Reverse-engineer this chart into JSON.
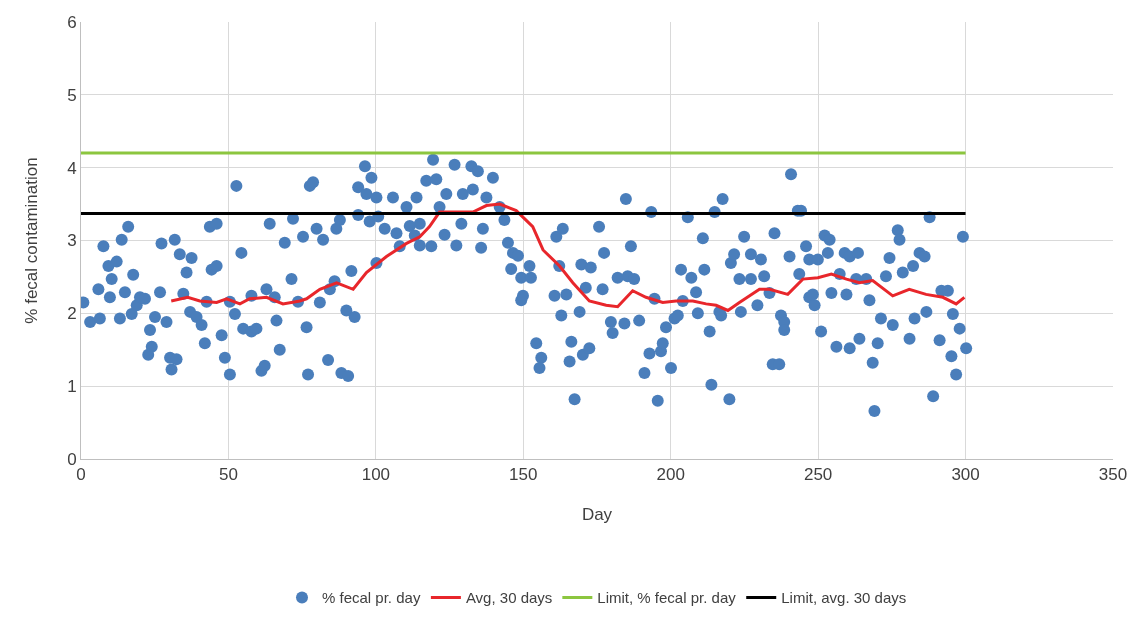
{
  "chart_data": {
    "type": "scatter",
    "xlabel": "Day",
    "ylabel": "% fecal contamination",
    "xlim": [
      0,
      350
    ],
    "xticks": [
      0,
      50,
      100,
      150,
      200,
      250,
      300,
      350
    ],
    "ylim": [
      0,
      6
    ],
    "yticks": [
      0,
      1,
      2,
      3,
      4,
      5,
      6
    ],
    "grid": true,
    "legend": "bottom",
    "series": [
      {
        "name": "% fecal pr. day",
        "marker": "circle",
        "color": "#4a7ebb",
        "x": [
          0.8,
          3.1,
          5.9,
          6.4,
          7.6,
          9.3,
          10.4,
          9.8,
          12.1,
          13.2,
          13.8,
          14.9,
          16.0,
          17.7,
          17.2,
          18.9,
          20.0,
          21.7,
          23.4,
          24.0,
          22.8,
          25.1,
          26.8,
          27.3,
          29.0,
          30.2,
          30.7,
          32.4,
          31.8,
          33.5,
          35.8,
          37.5,
          34.7,
          37.0,
          39.2,
          40.9,
          42.0,
          42.6,
          44.3,
          46.0,
          43.7,
          46.0,
          47.7,
          48.8,
          50.5,
          50.5,
          52.7,
          54.4,
          52.2,
          55.0,
          57.8,
          59.5,
          57.8,
          61.2,
          62.3,
          62.9,
          64.0,
          65.7,
          66.3,
          67.4,
          69.1,
          71.4,
          71.9,
          73.6,
          75.3,
          76.5,
          77.0,
          77.6,
          78.7,
          79.9,
          82.1,
          81.0,
          83.8,
          84.4,
          86.0,
          86.6,
          87.8,
          88.3,
          90.6,
          90.0,
          92.8,
          91.7,
          94.0,
          96.3,
          98.5,
          96.8,
          100.2,
          94.0,
          97.9,
          100.8,
          100.2,
          103.0,
          105.8,
          107.0,
          108.1,
          110.4,
          113.8,
          111.5,
          113.2,
          114.9,
          114.9,
          117.1,
          119.4,
          120.5,
          118.8,
          121.6,
          123.9,
          123.3,
          126.7,
          127.3,
          129.0,
          129.5,
          132.4,
          134.6,
          132.9,
          136.3,
          135.7,
          137.5,
          139.7,
          142.0,
          143.6,
          144.8,
          146.5,
          145.9,
          148.2,
          149.3,
          152.1,
          152.6,
          149.9,
          149.3,
          154.4,
          156.1,
          155.5,
          162.2,
          160.6,
          161.2,
          163.4,
          164.6,
          162.9,
          166.3,
          165.7,
          167.4,
          169.1,
          170.2,
          172.4,
          169.7,
          172.9,
          171.2,
          175.7,
          177.4,
          176.9,
          179.7,
          180.3,
          182.0,
          184.8,
          184.3,
          185.4,
          186.5,
          187.6,
          189.3,
          191.1,
          192.8,
          193.4,
          194.5,
          195.6,
          196.7,
          197.3,
          198.4,
          200.1,
          201.3,
          202.4,
          203.5,
          204.1,
          205.8,
          207.0,
          208.6,
          209.2,
          210.9,
          211.4,
          213.2,
          213.8,
          214.9,
          216.5,
          217.6,
          217.1,
          219.9,
          220.4,
          221.5,
          223.3,
          223.8,
          224.9,
          227.2,
          227.2,
          229.4,
          230.6,
          231.7,
          233.5,
          235.2,
          234.6,
          236.8,
          237.4,
          238.5,
          238.5,
          240.3,
          240.8,
          243.1,
          244.2,
          243.6,
          245.9,
          247.0,
          247.0,
          248.8,
          248.2,
          249.9,
          251.0,
          252.2,
          253.9,
          253.3,
          254.5,
          256.2,
          257.3,
          259.0,
          259.6,
          260.7,
          260.7,
          263.5,
          264.0,
          262.9,
          266.3,
          267.4,
          268.5,
          269.1,
          270.2,
          271.3,
          273.0,
          274.2,
          275.3,
          277.0,
          277.6,
          278.7,
          281.0,
          282.2,
          282.7,
          284.4,
          286.1,
          286.7,
          287.8,
          289.0,
          291.2,
          291.8,
          294.0,
          295.2,
          295.7,
          296.8,
          298.0,
          299.1,
          300.2
        ],
        "values": [
          2.15,
          1.88,
          2.33,
          1.93,
          2.92,
          2.65,
          2.47,
          2.22,
          2.71,
          1.93,
          3.01,
          2.29,
          3.19,
          2.53,
          1.99,
          2.11,
          2.22,
          2.2,
          1.77,
          1.54,
          1.43,
          1.95,
          2.29,
          2.96,
          1.88,
          1.39,
          1.23,
          1.37,
          3.01,
          2.81,
          2.56,
          2.76,
          2.27,
          2.02,
          1.95,
          1.84,
          1.59,
          2.16,
          2.6,
          2.65,
          3.19,
          3.23,
          1.7,
          1.39,
          1.16,
          2.16,
          3.75,
          2.83,
          1.99,
          1.79,
          1.75,
          1.79,
          2.24,
          1.21,
          1.28,
          2.33,
          3.23,
          2.22,
          1.9,
          1.5,
          2.97,
          2.47,
          3.3,
          2.16,
          3.05,
          1.81,
          1.16,
          3.75,
          3.8,
          3.16,
          3.01,
          2.15,
          1.36,
          2.33,
          2.44,
          3.16,
          3.28,
          1.18,
          1.14,
          2.04,
          1.95,
          2.58,
          3.73,
          4.02,
          3.86,
          3.64,
          3.59,
          3.35,
          3.26,
          3.33,
          2.69,
          3.16,
          3.59,
          3.1,
          2.92,
          3.46,
          3.59,
          3.2,
          3.07,
          2.93,
          3.23,
          3.82,
          4.11,
          3.84,
          2.92,
          3.46,
          3.64,
          3.08,
          4.04,
          2.93,
          3.23,
          3.64,
          4.02,
          3.95,
          3.7,
          3.16,
          2.9,
          3.59,
          3.86,
          3.46,
          3.28,
          2.97,
          2.83,
          2.61,
          2.79,
          2.49,
          2.65,
          2.49,
          2.24,
          2.18,
          1.59,
          1.39,
          1.25,
          2.65,
          2.24,
          3.05,
          3.16,
          2.26,
          1.97,
          1.61,
          1.34,
          0.82,
          2.02,
          1.43,
          1.52,
          2.67,
          2.63,
          2.35,
          3.19,
          2.83,
          2.33,
          1.88,
          1.73,
          2.49,
          3.57,
          1.86,
          2.51,
          2.92,
          2.47,
          1.9,
          1.18,
          1.45,
          3.39,
          2.2,
          0.8,
          1.48,
          1.59,
          1.81,
          1.25,
          1.93,
          1.97,
          2.6,
          2.17,
          3.32,
          2.49,
          2.29,
          2.0,
          3.03,
          2.6,
          1.75,
          1.02,
          3.39,
          2.02,
          3.57,
          1.97,
          0.82,
          2.69,
          2.81,
          2.47,
          2.02,
          3.05,
          2.81,
          2.47,
          2.11,
          2.74,
          2.51,
          2.28,
          3.1,
          1.3,
          1.3,
          1.97,
          1.88,
          1.77,
          2.78,
          3.91,
          3.41,
          3.41,
          2.54,
          2.92,
          2.74,
          2.22,
          2.11,
          2.26,
          2.74,
          1.75,
          3.07,
          3.01,
          2.83,
          2.28,
          1.54,
          2.54,
          2.83,
          2.26,
          1.52,
          2.78,
          2.83,
          1.65,
          2.47,
          2.47,
          2.18,
          1.32,
          0.66,
          1.59,
          1.93,
          2.51,
          2.76,
          1.84,
          3.14,
          3.01,
          2.56,
          1.65,
          2.65,
          1.93,
          2.83,
          2.78,
          2.02,
          3.32,
          0.86,
          1.63,
          2.31,
          2.31,
          1.41,
          1.99,
          1.16,
          1.79,
          3.05,
          1.52
        ]
      },
      {
        "name": "Avg, 30 days",
        "type": "line",
        "marker": "none",
        "color": "#e8262b",
        "x": [
          30.6,
          36.2,
          40.3,
          46.0,
          49.4,
          53.9,
          57.2,
          62.9,
          68.5,
          74.2,
          76.5,
          81.0,
          86.7,
          92.3,
          96.8,
          103.6,
          110.4,
          114.9,
          118.2,
          121.6,
          126.2,
          132.9,
          137.5,
          142.0,
          147.6,
          153.2,
          156.7,
          162.3,
          166.8,
          172.4,
          178.1,
          182.0,
          187.1,
          191.6,
          197.3,
          201.8,
          207.5,
          212.0,
          215.4,
          219.4,
          223.3,
          230.1,
          233.5,
          239.7,
          244.8,
          249.9,
          254.5,
          259.6,
          264.0,
          268.5,
          275.3,
          280.9,
          286.6,
          292.3,
          296.8,
          299.6
        ],
        "values": [
          2.17,
          2.22,
          2.17,
          2.15,
          2.2,
          2.13,
          2.2,
          2.22,
          2.13,
          2.17,
          2.2,
          2.33,
          2.42,
          2.33,
          2.56,
          2.78,
          2.96,
          3.05,
          3.19,
          3.39,
          3.39,
          3.39,
          3.48,
          3.5,
          3.41,
          3.19,
          2.87,
          2.65,
          2.42,
          2.17,
          2.11,
          2.09,
          2.31,
          2.22,
          2.15,
          2.17,
          2.17,
          2.13,
          2.11,
          2.04,
          2.15,
          2.33,
          2.33,
          2.26,
          2.47,
          2.49,
          2.54,
          2.47,
          2.42,
          2.45,
          2.24,
          2.33,
          2.26,
          2.22,
          2.13,
          2.22
        ]
      },
      {
        "name": "Limit, % fecal pr. day",
        "type": "line",
        "marker": "none",
        "color": "#8cc63f",
        "x": [
          0,
          300
        ],
        "values": [
          4.2,
          4.2
        ]
      },
      {
        "name": "Limit, avg. 30 days",
        "type": "line",
        "marker": "none",
        "color": "#000000",
        "x": [
          0,
          300
        ],
        "values": [
          3.37,
          3.37
        ]
      }
    ]
  }
}
